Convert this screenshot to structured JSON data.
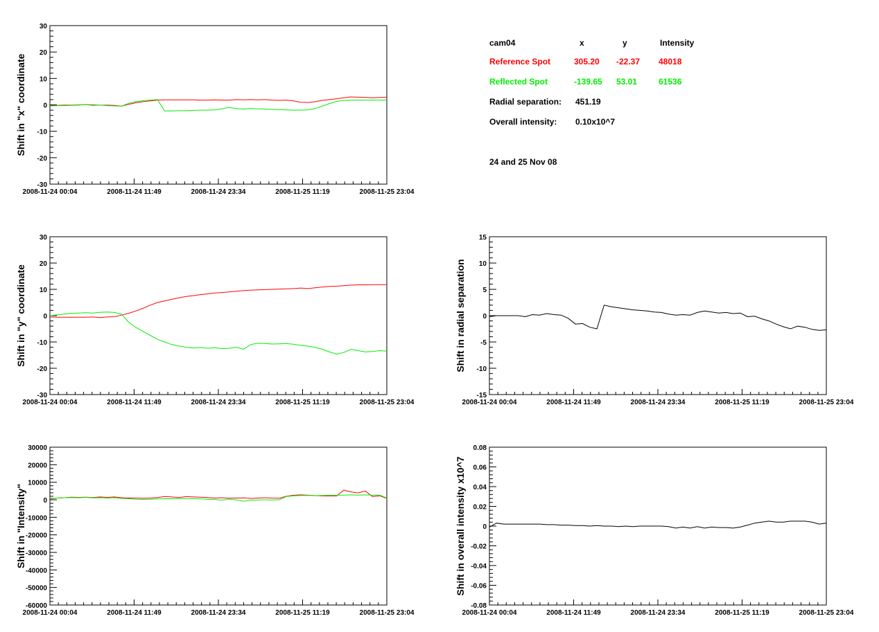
{
  "info": {
    "camera": "cam04",
    "col_x": "x",
    "col_y": "y",
    "col_intensity": "Intensity",
    "ref_label": "Reference Spot",
    "ref_x": "305.20",
    "ref_y": "-22.37",
    "ref_intensity": "48018",
    "refl_label": "Reflected Spot",
    "refl_x": "-139.65",
    "refl_y": "53.01",
    "refl_intensity": "61536",
    "radial_label": "Radial separation:",
    "radial_value": "451.19",
    "overall_label": "Overall intensity:",
    "overall_value": "0.10x10^7",
    "date_note": "24 and 25 Nov 08"
  },
  "colors": {
    "reference": "#ff0000",
    "reflected": "#00ee00",
    "single": "#000000"
  },
  "chart_data": [
    {
      "type": "line",
      "id": "x-shift",
      "ylabel": "Shift in \"x\" coordinate",
      "xlabel": "",
      "ylim": [
        -30,
        30
      ],
      "yticks": [
        -30,
        -20,
        -10,
        0,
        10,
        20,
        30
      ],
      "xticklabels": [
        "2008-11-24 00:04",
        "2008-11-24 11:49",
        "2008-11-24 23:34",
        "2008-11-25 11:19",
        "2008-11-25 23:04"
      ],
      "xlim": [
        0,
        47
      ],
      "x": [
        0,
        1,
        2,
        3,
        4,
        5,
        6,
        7,
        8,
        9,
        10,
        11,
        12,
        13,
        14,
        15,
        16,
        17,
        18,
        19,
        20,
        21,
        22,
        23,
        24,
        25,
        26,
        27,
        28,
        29,
        30,
        31,
        32,
        33,
        34,
        35,
        36,
        37,
        38,
        39,
        40,
        41,
        42,
        43,
        44,
        45,
        46,
        47
      ],
      "series": [
        {
          "name": "Reference Spot",
          "color": "reference",
          "values": [
            -0.3,
            -0.2,
            -0.1,
            -0.1,
            0,
            0.1,
            0,
            -0.1,
            -0.1,
            -0.2,
            -0.5,
            0.2,
            0.8,
            1.2,
            1.5,
            1.8,
            1.9,
            1.9,
            1.9,
            1.9,
            1.9,
            1.8,
            1.8,
            1.9,
            1.8,
            1.8,
            2.0,
            1.9,
            2.0,
            1.9,
            2.0,
            1.8,
            1.7,
            1.8,
            1.5,
            1.0,
            0.9,
            1.2,
            1.7,
            2.0,
            2.3,
            2.7,
            3.0,
            2.9,
            2.8,
            2.7,
            2.8,
            2.9
          ]
        },
        {
          "name": "Reflected Spot",
          "color": "reflected",
          "values": [
            -0.4,
            -0.3,
            -0.3,
            -0.2,
            -0.1,
            0.1,
            -0.2,
            -0.1,
            -0.3,
            -0.4,
            -0.5,
            0.6,
            1.2,
            1.6,
            1.8,
            2.0,
            -2.3,
            -2.3,
            -2.2,
            -2.2,
            -2.1,
            -2.0,
            -2.0,
            -1.9,
            -1.5,
            -1.0,
            -1.4,
            -1.6,
            -1.4,
            -1.5,
            -1.6,
            -1.7,
            -1.8,
            -1.9,
            -2.0,
            -2.0,
            -1.9,
            -1.4,
            -0.5,
            0.5,
            1.3,
            1.7,
            1.8,
            1.8,
            1.8,
            1.8,
            1.8,
            1.8
          ]
        }
      ]
    },
    {
      "type": "line",
      "id": "y-shift",
      "ylabel": "Shift in \"y\" coordinate",
      "xlabel": "",
      "ylim": [
        -30,
        30
      ],
      "yticks": [
        -30,
        -20,
        -10,
        0,
        10,
        20,
        30
      ],
      "xticklabels": [
        "2008-11-24 00:04",
        "2008-11-24 11:49",
        "2008-11-24 23:34",
        "2008-11-25 11:19",
        "2008-11-25 23:04"
      ],
      "xlim": [
        0,
        47
      ],
      "x": [
        0,
        1,
        2,
        3,
        4,
        5,
        6,
        7,
        8,
        9,
        10,
        11,
        12,
        13,
        14,
        15,
        16,
        17,
        18,
        19,
        20,
        21,
        22,
        23,
        24,
        25,
        26,
        27,
        28,
        29,
        30,
        31,
        32,
        33,
        34,
        35,
        36,
        37,
        38,
        39,
        40,
        41,
        42,
        43,
        44,
        45,
        46,
        47
      ],
      "series": [
        {
          "name": "Reference Spot",
          "color": "reference",
          "values": [
            -0.5,
            -0.6,
            -0.6,
            -0.6,
            -0.6,
            -0.6,
            -0.5,
            -0.7,
            -0.5,
            -0.4,
            0.2,
            0.9,
            1.8,
            2.8,
            4.0,
            5.0,
            5.6,
            6.2,
            6.8,
            7.3,
            7.6,
            8.0,
            8.3,
            8.6,
            8.8,
            9.0,
            9.3,
            9.5,
            9.7,
            9.8,
            9.9,
            10.0,
            10.1,
            10.2,
            10.3,
            10.5,
            10.3,
            10.6,
            10.9,
            11.1,
            11.2,
            11.4,
            11.6,
            11.7,
            11.7,
            11.8,
            11.8,
            11.8
          ]
        },
        {
          "name": "Reflected Spot",
          "color": "reflected",
          "values": [
            0,
            0.3,
            0.6,
            0.9,
            1.0,
            1.1,
            1.0,
            1.3,
            1.4,
            1.2,
            0.5,
            -2.5,
            -4.5,
            -6.0,
            -7.5,
            -9.0,
            -10.0,
            -11.0,
            -11.5,
            -12.0,
            -12.3,
            -12.1,
            -12.4,
            -12.2,
            -12.5,
            -12.4,
            -12.0,
            -12.8,
            -11.0,
            -10.5,
            -10.6,
            -10.8,
            -10.7,
            -10.6,
            -10.9,
            -11.3,
            -11.6,
            -12.0,
            -12.8,
            -13.8,
            -14.6,
            -14.0,
            -12.8,
            -13.3,
            -13.8,
            -13.6,
            -13.3,
            -13.5
          ]
        }
      ]
    },
    {
      "type": "line",
      "id": "intensity-shift",
      "ylabel": "Shift in \"Intensity\"",
      "xlabel": "",
      "ylim": [
        -60000,
        30000
      ],
      "yticks": [
        -60000,
        -50000,
        -40000,
        -30000,
        -20000,
        -10000,
        0,
        10000,
        20000,
        30000
      ],
      "xticklabels": [
        "2008-11-24 00:04",
        "2008-11-24 11:49",
        "2008-11-24 23:34",
        "2008-11-25 11:19",
        "2008-11-25 23:04"
      ],
      "xlim": [
        0,
        47
      ],
      "x": [
        0,
        1,
        2,
        3,
        4,
        5,
        6,
        7,
        8,
        9,
        10,
        11,
        12,
        13,
        14,
        15,
        16,
        17,
        18,
        19,
        20,
        21,
        22,
        23,
        24,
        25,
        26,
        27,
        28,
        29,
        30,
        31,
        32,
        33,
        34,
        35,
        36,
        37,
        38,
        39,
        40,
        41,
        42,
        43,
        44,
        45,
        46,
        47
      ],
      "series": [
        {
          "name": "Reference Spot",
          "color": "reference",
          "values": [
            500,
            1000,
            1200,
            1500,
            1400,
            1500,
            1300,
            1600,
            1400,
            1600,
            1200,
            1000,
            1000,
            900,
            1000,
            1300,
            1900,
            1600,
            1300,
            1800,
            1600,
            1500,
            1300,
            1000,
            1200,
            900,
            1000,
            1100,
            800,
            1000,
            1200,
            1000,
            900,
            2000,
            2600,
            2800,
            2600,
            2400,
            2200,
            2300,
            2200,
            5500,
            4500,
            3900,
            5000,
            1800,
            2300,
            800
          ]
        },
        {
          "name": "Reflected Spot",
          "color": "reflected",
          "values": [
            800,
            1000,
            1200,
            1300,
            1200,
            1400,
            1100,
            1200,
            1000,
            1200,
            800,
            600,
            300,
            200,
            300,
            500,
            600,
            600,
            700,
            700,
            700,
            500,
            300,
            200,
            -200,
            400,
            -100,
            -800,
            -200,
            -100,
            0,
            -100,
            0,
            1900,
            2300,
            2500,
            2500,
            2400,
            2500,
            2600,
            2600,
            2700,
            2800,
            2700,
            2800,
            2600,
            2700,
            1000
          ]
        }
      ]
    },
    {
      "type": "line",
      "id": "radial-shift",
      "ylabel": "Shift in radial separation",
      "xlabel": "",
      "ylim": [
        -15,
        15
      ],
      "yticks": [
        -15,
        -10,
        -5,
        0,
        5,
        10,
        15
      ],
      "xticklabels": [
        "2008-11-24 00:04",
        "2008-11-24 11:49",
        "2008-11-24 23:34",
        "2008-11-25 11:19",
        "2008-11-25 23:04"
      ],
      "xlim": [
        0,
        47
      ],
      "x": [
        0,
        1,
        2,
        3,
        4,
        5,
        6,
        7,
        8,
        9,
        10,
        11,
        12,
        13,
        14,
        15,
        16,
        17,
        18,
        19,
        20,
        21,
        22,
        23,
        24,
        25,
        26,
        27,
        28,
        29,
        30,
        31,
        32,
        33,
        34,
        35,
        36,
        37,
        38,
        39,
        40,
        41,
        42,
        43,
        44,
        45,
        46,
        47
      ],
      "series": [
        {
          "name": "",
          "color": "single",
          "values": [
            -0.2,
            0,
            0,
            0,
            0,
            -0.2,
            0.2,
            0.1,
            0.4,
            0.2,
            0.1,
            -0.5,
            -1.6,
            -1.5,
            -2.2,
            -2.5,
            2.0,
            1.7,
            1.5,
            1.3,
            1.1,
            1.0,
            0.9,
            0.7,
            0.6,
            0.3,
            0.1,
            0.2,
            0.1,
            0.6,
            0.9,
            0.7,
            0.5,
            0.6,
            0.4,
            0.5,
            -0.2,
            -0.1,
            -0.6,
            -1.0,
            -1.6,
            -2.1,
            -2.5,
            -2.0,
            -2.2,
            -2.6,
            -2.8,
            -2.7
          ]
        }
      ]
    },
    {
      "type": "line",
      "id": "overall-intensity-shift",
      "ylabel": "Shift in overall intensity x10^7",
      "xlabel": "",
      "ylim": [
        -0.08,
        0.08
      ],
      "yticks": [
        -0.08,
        -0.06,
        -0.04,
        -0.02,
        0,
        0.02,
        0.04,
        0.06,
        0.08
      ],
      "xticklabels": [
        "2008-11-24 00:04",
        "2008-11-24 11:49",
        "2008-11-24 23:34",
        "2008-11-25 11:19",
        "2008-11-25 23:04"
      ],
      "xlim": [
        0,
        47
      ],
      "x": [
        0,
        1,
        2,
        3,
        4,
        5,
        6,
        7,
        8,
        9,
        10,
        11,
        12,
        13,
        14,
        15,
        16,
        17,
        18,
        19,
        20,
        21,
        22,
        23,
        24,
        25,
        26,
        27,
        28,
        29,
        30,
        31,
        32,
        33,
        34,
        35,
        36,
        37,
        38,
        39,
        40,
        41,
        42,
        43,
        44,
        45,
        46,
        47
      ],
      "series": [
        {
          "name": "",
          "color": "single",
          "values": [
            -0.001,
            0.003,
            0.002,
            0.002,
            0.002,
            0.002,
            0.002,
            0.002,
            0.0015,
            0.0015,
            0.001,
            0.001,
            0.0005,
            0.0005,
            0.0,
            0.0005,
            0.0,
            0.0,
            -0.0005,
            0.0,
            -0.0005,
            0.0,
            0.0,
            0.0,
            0.0,
            -0.0005,
            -0.002,
            -0.001,
            -0.002,
            -0.0005,
            -0.002,
            -0.001,
            -0.0015,
            -0.0015,
            -0.002,
            -0.001,
            0.001,
            0.003,
            0.004,
            0.005,
            0.004,
            0.004,
            0.005,
            0.005,
            0.005,
            0.004,
            0.002,
            0.003
          ]
        }
      ]
    }
  ]
}
